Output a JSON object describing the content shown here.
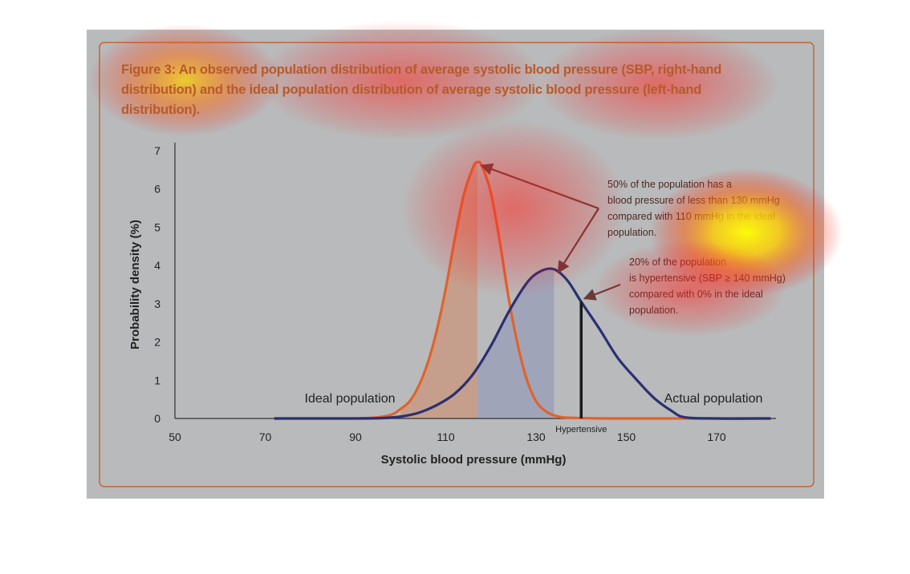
{
  "figure": {
    "caption_prefix": "Figure 3:",
    "caption_text": "An observed population distribution of average systolic blood pressure (SBP, right-hand distribution) and the ideal population distribution of average systolic blood pressure (left-hand distribution)."
  },
  "colors": {
    "panel_background": "#b9babb",
    "panel_border": "#c8642e",
    "caption": "#b75a2a",
    "ideal_curve": "#e0632a",
    "actual_curve": "#2b2f72",
    "ideal_fill": "#c79a82",
    "actual_fill": "#9ba0b8",
    "annotation_arrow": "#6b3a36",
    "hypertensive_line": "#1a1a1a",
    "annotation_text": "#4a2a24",
    "heatmap_hot": "#ffff00",
    "heatmap_mid": "#ff6a00",
    "heatmap_cool": "#ff0000"
  },
  "chart_data": {
    "type": "line",
    "title": "",
    "xlabel": "Systolic blood pressure (mmHg)",
    "ylabel": "Probability density (%)",
    "xlim": [
      50,
      180
    ],
    "ylim": [
      0,
      7
    ],
    "x_ticks": [
      50,
      70,
      90,
      110,
      130,
      150,
      170
    ],
    "y_ticks": [
      0,
      1,
      2,
      3,
      4,
      5,
      6,
      7
    ],
    "grid": false,
    "series": [
      {
        "name": "Ideal population",
        "x": [
          72,
          80,
          88,
          94,
          98,
          100,
          102,
          104,
          106,
          108,
          110,
          112,
          114,
          116,
          117,
          118,
          120,
          122,
          124,
          126,
          128,
          130,
          132,
          134,
          136,
          140,
          145,
          150,
          160,
          170,
          182
        ],
        "y": [
          0.0,
          0.0,
          0.0,
          0.02,
          0.1,
          0.25,
          0.45,
          0.85,
          1.45,
          2.3,
          3.4,
          4.7,
          5.85,
          6.55,
          6.7,
          6.6,
          5.9,
          4.6,
          3.1,
          1.9,
          1.0,
          0.45,
          0.2,
          0.08,
          0.03,
          0.01,
          0.0,
          0.0,
          0.0,
          0.0,
          0.0
        ]
      },
      {
        "name": "Actual population",
        "x": [
          72,
          80,
          90,
          96,
          100,
          104,
          108,
          112,
          116,
          120,
          124,
          128,
          131,
          134,
          137,
          140,
          144,
          148,
          152,
          156,
          160,
          163,
          170,
          182
        ],
        "y": [
          0.0,
          0.0,
          0.0,
          0.01,
          0.05,
          0.15,
          0.35,
          0.65,
          1.15,
          1.9,
          2.8,
          3.55,
          3.85,
          3.9,
          3.6,
          3.05,
          2.35,
          1.6,
          1.05,
          0.55,
          0.2,
          0.03,
          0.0,
          0.0
        ]
      }
    ],
    "shaded_regions": [
      {
        "series": "Ideal population",
        "x_from": 100,
        "x_to": 117
      },
      {
        "series": "Actual population",
        "x_from": 117,
        "x_to": 134
      }
    ],
    "threshold": {
      "x": 140,
      "label": "Hypertensive"
    },
    "labels": {
      "ideal": "Ideal population",
      "actual": "Actual population"
    },
    "annotations": [
      {
        "lines": [
          "50% of the population has a",
          "blood pressure of less than 130 mmHg",
          "compared with 110 mmHg in the ideal",
          "population."
        ],
        "arrow_targets": [
          [
            117,
            6.7
          ],
          [
            134,
            3.9
          ]
        ]
      },
      {
        "lines": [
          "20% of the population",
          "is hypertensive (SBP  ≥ 140 mmHg)",
          "compared with 0% in the ideal",
          "population."
        ],
        "arrow_targets": [
          [
            140,
            3.05
          ]
        ]
      }
    ]
  }
}
